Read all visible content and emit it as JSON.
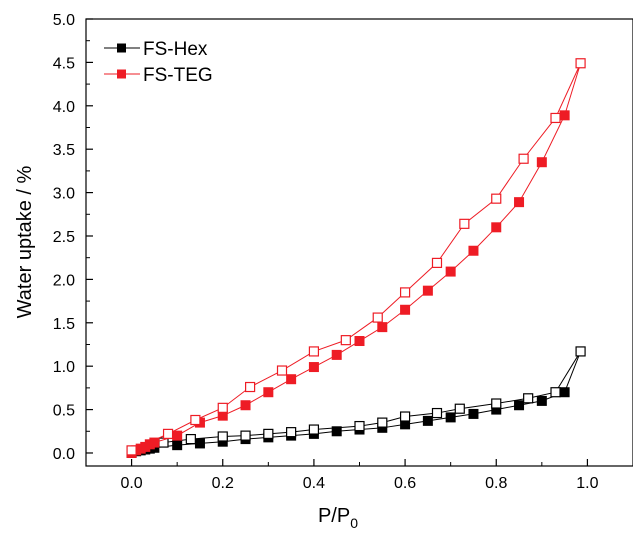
{
  "chart_data": {
    "type": "scatter",
    "xlabel": "P/P",
    "xlabel_subscript": "0",
    "ylabel": "Water uptake / %",
    "xlim": [
      -0.1,
      1.1
    ],
    "ylim": [
      -0.15,
      5.0
    ],
    "xticks": [
      0.0,
      0.2,
      0.4,
      0.6,
      0.8,
      1.0
    ],
    "xtick_labels": [
      "0.0",
      "0.2",
      "0.4",
      "0.6",
      "0.8",
      "1.0"
    ],
    "yticks": [
      0.0,
      0.5,
      1.0,
      1.5,
      2.0,
      2.5,
      3.0,
      3.5,
      4.0,
      4.5,
      5.0
    ],
    "ytick_labels": [
      "0.0",
      "0.5",
      "1.0",
      "1.5",
      "2.0",
      "2.5",
      "3.0",
      "3.5",
      "4.0",
      "4.5",
      "5.0"
    ],
    "grid": false,
    "legend_position": "top-left",
    "series": [
      {
        "name": "FS-Hex",
        "color": "#000000",
        "adsorption": {
          "x": [
            0.0,
            0.01,
            0.02,
            0.03,
            0.04,
            0.05,
            0.1,
            0.15,
            0.2,
            0.25,
            0.3,
            0.35,
            0.4,
            0.45,
            0.5,
            0.55,
            0.6,
            0.65,
            0.7,
            0.75,
            0.8,
            0.85,
            0.9,
            0.95
          ],
          "y": [
            0.0,
            0.02,
            0.03,
            0.04,
            0.05,
            0.06,
            0.09,
            0.11,
            0.13,
            0.16,
            0.18,
            0.2,
            0.22,
            0.25,
            0.27,
            0.29,
            0.33,
            0.37,
            0.41,
            0.45,
            0.5,
            0.55,
            0.6,
            0.7
          ]
        },
        "desorption": {
          "x": [
            0.0,
            0.07,
            0.13,
            0.2,
            0.25,
            0.3,
            0.35,
            0.4,
            0.5,
            0.55,
            0.6,
            0.67,
            0.72,
            0.8,
            0.87,
            0.93,
            0.985
          ],
          "y": [
            0.02,
            0.12,
            0.16,
            0.19,
            0.2,
            0.22,
            0.24,
            0.27,
            0.31,
            0.35,
            0.42,
            0.46,
            0.51,
            0.57,
            0.63,
            0.7,
            1.17
          ]
        }
      },
      {
        "name": "FS-TEG",
        "color": "#ee1c25",
        "adsorption": {
          "x": [
            0.0,
            0.01,
            0.02,
            0.03,
            0.04,
            0.05,
            0.1,
            0.15,
            0.2,
            0.25,
            0.3,
            0.35,
            0.4,
            0.45,
            0.5,
            0.55,
            0.6,
            0.65,
            0.7,
            0.75,
            0.8,
            0.85,
            0.9,
            0.95
          ],
          "y": [
            0.0,
            0.03,
            0.05,
            0.07,
            0.1,
            0.12,
            0.2,
            0.35,
            0.43,
            0.55,
            0.7,
            0.85,
            0.99,
            1.13,
            1.29,
            1.45,
            1.65,
            1.87,
            2.09,
            2.33,
            2.6,
            2.89,
            3.35,
            3.89
          ]
        },
        "desorption": {
          "x": [
            0.0,
            0.08,
            0.14,
            0.2,
            0.26,
            0.33,
            0.4,
            0.47,
            0.54,
            0.6,
            0.67,
            0.73,
            0.8,
            0.86,
            0.93,
            0.985
          ],
          "y": [
            0.03,
            0.22,
            0.38,
            0.52,
            0.76,
            0.95,
            1.17,
            1.3,
            1.56,
            1.85,
            2.19,
            2.64,
            2.93,
            3.39,
            3.86,
            4.49
          ]
        }
      }
    ]
  }
}
